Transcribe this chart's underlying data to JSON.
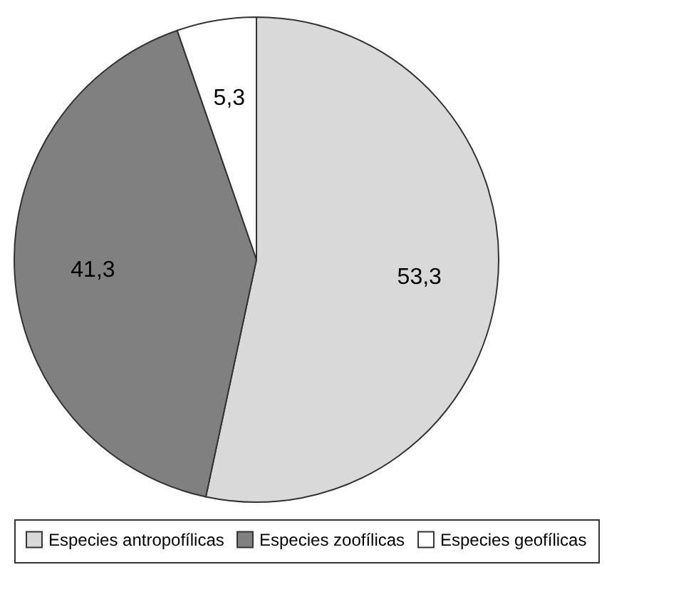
{
  "chart_data": {
    "type": "pie",
    "categories": [
      "Especies antropofílicas",
      "Especies zoofílicas",
      "Especies geofílicas"
    ],
    "values": [
      53.3,
      41.3,
      5.3
    ],
    "value_labels": [
      "53,3",
      "41,3",
      "5,3"
    ],
    "colors": [
      "#d9d9d9",
      "#808080",
      "#ffffff"
    ],
    "legend": "bottom"
  }
}
